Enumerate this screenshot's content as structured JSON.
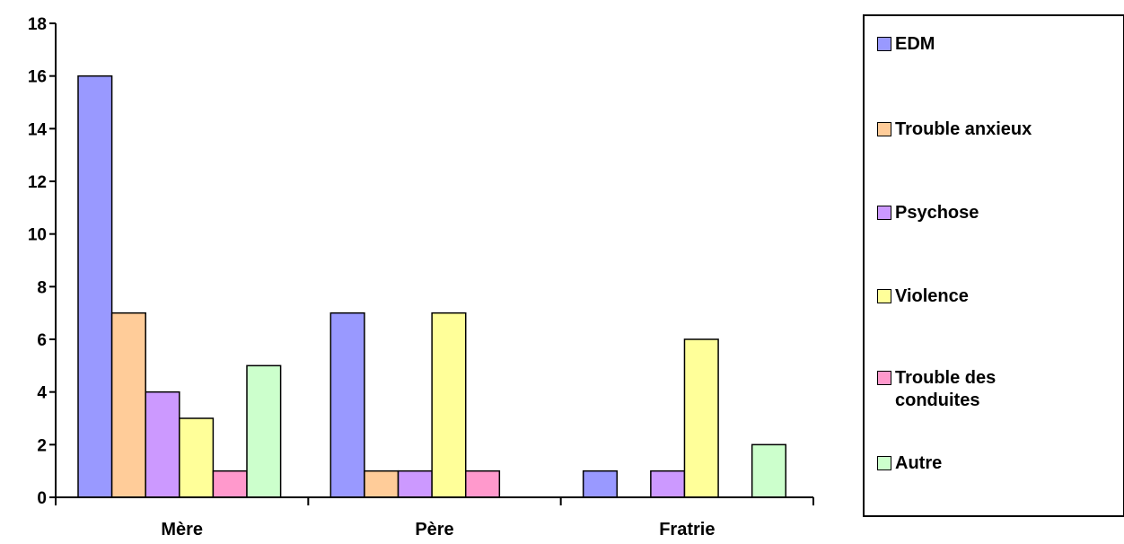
{
  "chart_data": {
    "type": "bar",
    "categories": [
      "Mère",
      "Père",
      "Fratrie"
    ],
    "series": [
      {
        "name": "EDM",
        "values": [
          16,
          7,
          1
        ],
        "color": "#9999ff"
      },
      {
        "name": "Trouble anxieux",
        "values": [
          7,
          1,
          0
        ],
        "color": "#ffcc99"
      },
      {
        "name": "Psychose",
        "values": [
          4,
          1,
          1
        ],
        "color": "#cc99ff"
      },
      {
        "name": "Violence",
        "values": [
          3,
          7,
          6
        ],
        "color": "#ffff99"
      },
      {
        "name": "Trouble des\nconduites",
        "values": [
          1,
          1,
          0
        ],
        "color": "#ff99cc"
      },
      {
        "name": "Autre",
        "values": [
          5,
          0,
          2
        ],
        "color": "#ccffcc"
      }
    ],
    "ylim": [
      0,
      18
    ],
    "yticks": [
      "0",
      "2",
      "4",
      "6",
      "8",
      "10",
      "12",
      "14",
      "16",
      "18"
    ],
    "grid": false,
    "legend": "right"
  }
}
